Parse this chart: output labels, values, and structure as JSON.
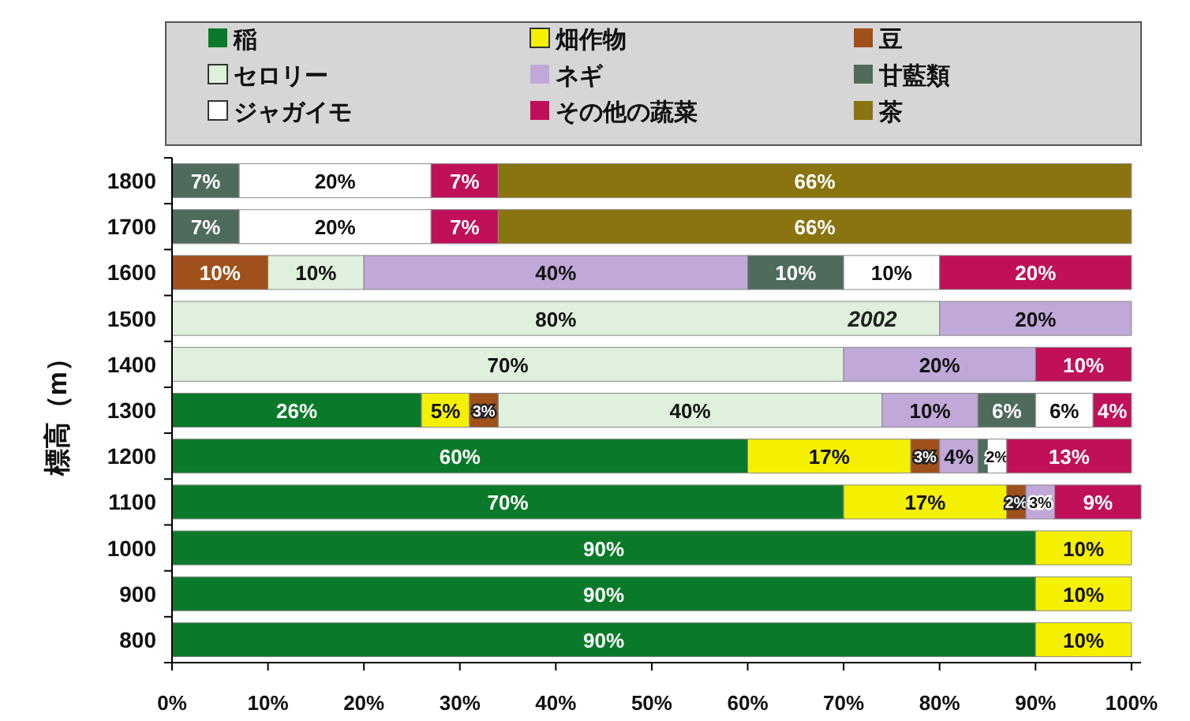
{
  "chart_data": {
    "type": "bar",
    "orientation": "horizontal",
    "stacked": true,
    "legend": "top",
    "ylabel": "標高（m）",
    "categories": [
      "1800",
      "1700",
      "1600",
      "1500",
      "1400",
      "1300",
      "1200",
      "1100",
      "1000",
      "900",
      "800"
    ],
    "xlim": [
      0,
      101
    ],
    "xticks": [
      {
        "value": 0,
        "label": "0%"
      },
      {
        "value": 10,
        "label": "10%"
      },
      {
        "value": 20,
        "label": "20%"
      },
      {
        "value": 30,
        "label": "30%"
      },
      {
        "value": 40,
        "label": "40%"
      },
      {
        "value": 50,
        "label": "50%"
      },
      {
        "value": 60,
        "label": "60%"
      },
      {
        "value": 70,
        "label": "70%"
      },
      {
        "value": 80,
        "label": "80%"
      },
      {
        "value": 90,
        "label": "90%"
      },
      {
        "value": 100,
        "label": "100%"
      }
    ],
    "annotations": [
      {
        "text": "2002",
        "x": 73,
        "y": "1500"
      }
    ],
    "series": [
      {
        "name": "稲",
        "color": "#0a7a2a",
        "values": [
          null,
          null,
          null,
          null,
          null,
          26,
          60,
          70,
          90,
          90,
          90
        ],
        "value_labels": [
          null,
          null,
          null,
          null,
          null,
          "26%",
          "60%",
          "70%",
          "90%",
          "90%",
          "90%"
        ]
      },
      {
        "name": "畑作物",
        "color": "#f5f000",
        "values": [
          null,
          null,
          null,
          null,
          null,
          5,
          17,
          17,
          10,
          10,
          10
        ],
        "value_labels": [
          null,
          null,
          null,
          null,
          null,
          "5%",
          "17%",
          "17%",
          "10%",
          "10%",
          "10%"
        ]
      },
      {
        "name": "豆",
        "color": "#a0501a",
        "values": [
          null,
          null,
          10,
          null,
          null,
          3,
          3,
          2,
          null,
          null,
          null
        ],
        "value_labels": [
          null,
          null,
          "10%",
          null,
          null,
          "3%",
          "3%",
          "2%",
          null,
          null,
          null
        ]
      },
      {
        "name": "セロリー",
        "color": "#dff0dc",
        "values": [
          null,
          null,
          10,
          80,
          70,
          40,
          null,
          null,
          null,
          null,
          null
        ],
        "value_labels": [
          null,
          null,
          "10%",
          "80%",
          "70%",
          "40%",
          null,
          null,
          null,
          null,
          null
        ]
      },
      {
        "name": "ネギ",
        "color": "#c0a8d8",
        "values": [
          null,
          null,
          40,
          20,
          20,
          10,
          4,
          3,
          null,
          null,
          null
        ],
        "value_labels": [
          null,
          null,
          "40%",
          "20%",
          "20%",
          "10%",
          "4%",
          "3%",
          null,
          null,
          null
        ]
      },
      {
        "name": "甘藍類",
        "color": "#4e6b5c",
        "values": [
          7,
          7,
          10,
          null,
          null,
          6,
          1,
          null,
          null,
          null,
          null
        ],
        "value_labels": [
          "7%",
          "7%",
          "10%",
          null,
          null,
          "6%",
          null,
          null,
          null,
          null,
          null
        ]
      },
      {
        "name": "ジャガイモ",
        "color": "#ffffff",
        "values": [
          20,
          20,
          10,
          null,
          null,
          6,
          2,
          null,
          null,
          null,
          null
        ],
        "value_labels": [
          "20%",
          "20%",
          "10%",
          null,
          null,
          "6%",
          "2%",
          null,
          null,
          null,
          null
        ]
      },
      {
        "name": "その他の蔬菜",
        "color": "#c0105a",
        "values": [
          7,
          7,
          20,
          null,
          10,
          4,
          13,
          9,
          null,
          null,
          null
        ],
        "value_labels": [
          "7%",
          "7%",
          "20%",
          null,
          "10%",
          "4%",
          "13%",
          "9%",
          null,
          null,
          null
        ]
      },
      {
        "name": "茶",
        "color": "#8a7410",
        "values": [
          66,
          66,
          null,
          null,
          null,
          null,
          null,
          null,
          null,
          null,
          null
        ],
        "value_labels": [
          "66%",
          "66%",
          null,
          null,
          null,
          null,
          null,
          null,
          null,
          null,
          null
        ]
      }
    ]
  }
}
